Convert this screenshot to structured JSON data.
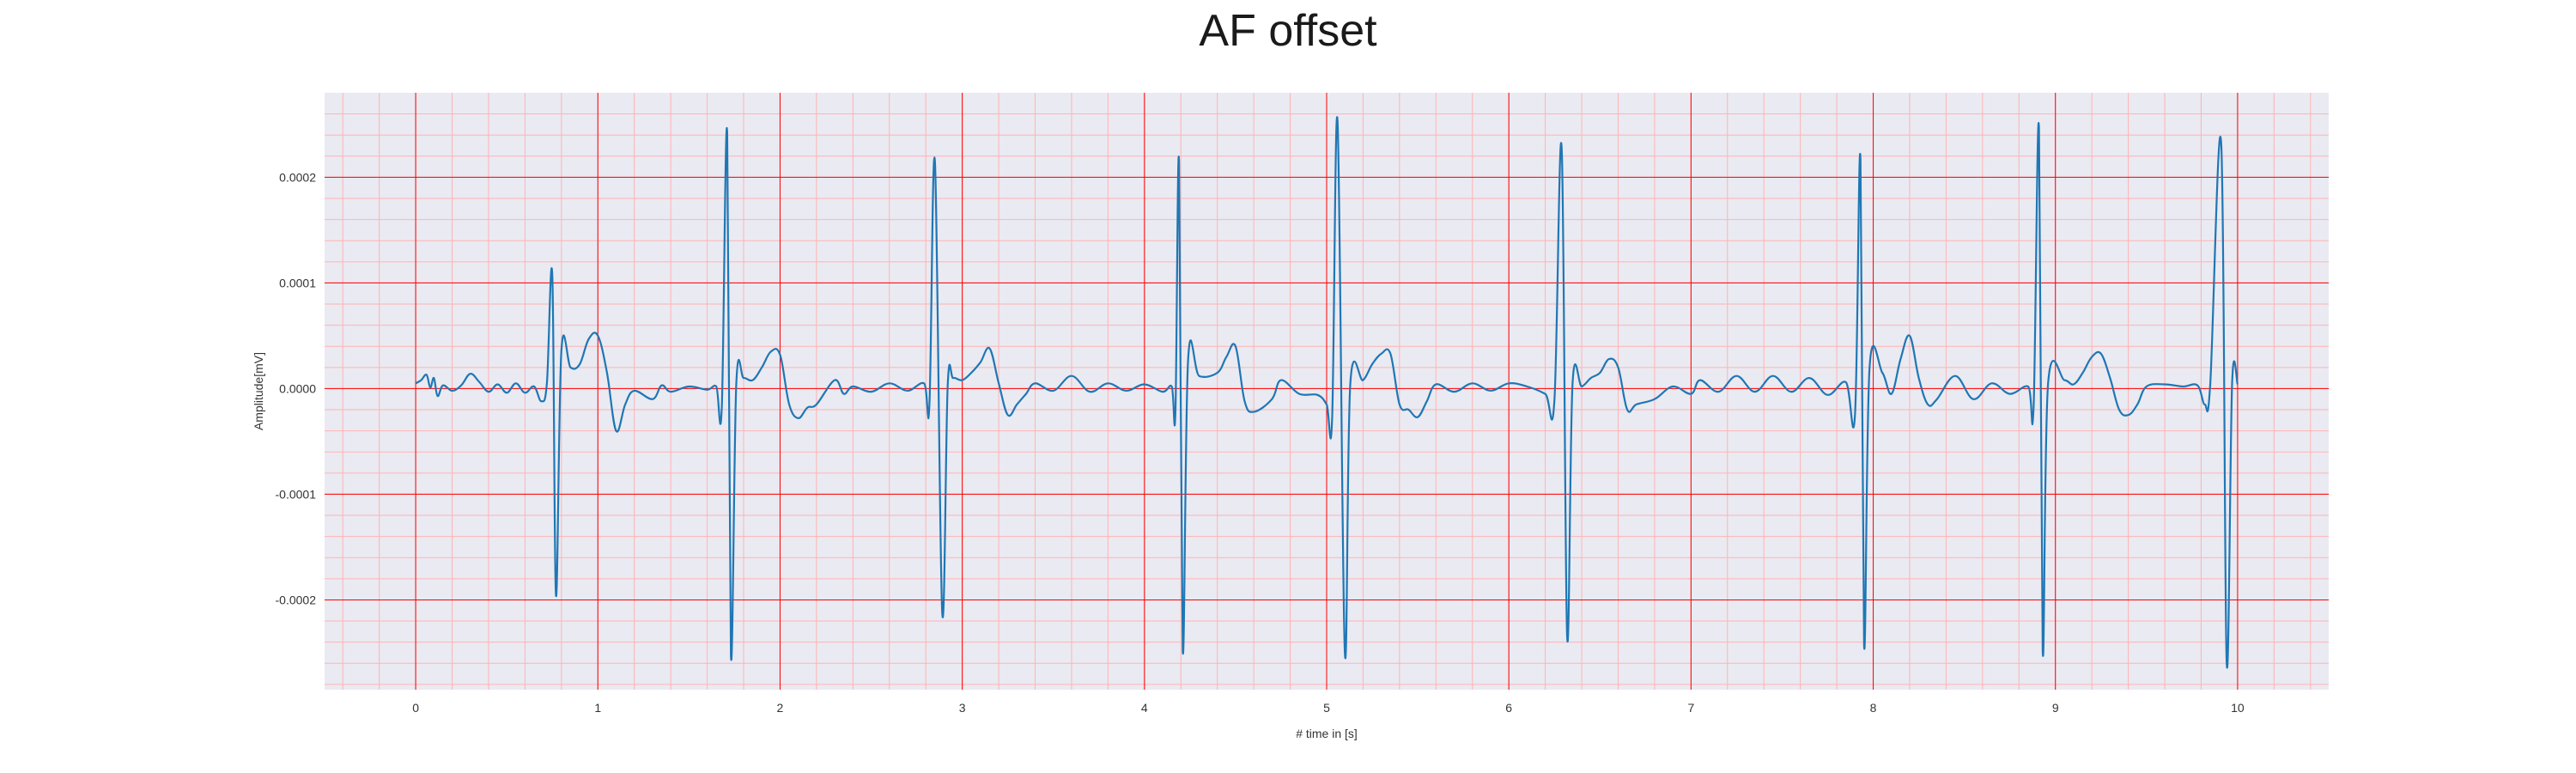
{
  "chart_data": {
    "type": "line",
    "title": "AF offset",
    "xlabel": "# time in [s]",
    "ylabel": "Amplitude[mV]",
    "xlim": [
      -0.5,
      10.5
    ],
    "ylim": [
      -0.000285,
      0.00028
    ],
    "x_ticks": [
      0,
      1,
      2,
      3,
      4,
      5,
      6,
      7,
      8,
      9,
      10
    ],
    "x_tick_labels": [
      "0",
      "1",
      "2",
      "3",
      "4",
      "5",
      "6",
      "7",
      "8",
      "9",
      "10"
    ],
    "y_ticks": [
      0.0002,
      0.0001,
      0.0,
      -0.0001,
      -0.0002
    ],
    "y_tick_labels": [
      "0.0002",
      "0.0001",
      "0.0000",
      "-0.0001",
      "-0.0002"
    ],
    "grid": {
      "major": true,
      "minor": true
    },
    "colors": {
      "line": "#1f77b4",
      "plot_background": "#eaeaf2",
      "major_grid": "#ff0000",
      "minor_grid": "#ffb3b3"
    },
    "series": [
      {
        "values": [
          [
            0.0,
            5e-06
          ],
          [
            0.03,
            8e-06
          ],
          [
            0.06,
            1.3e-05
          ],
          [
            0.08,
            1e-06
          ],
          [
            0.1,
            1e-05
          ],
          [
            0.12,
            -7e-06
          ],
          [
            0.15,
            3e-06
          ],
          [
            0.2,
            -2e-06
          ],
          [
            0.25,
            3e-06
          ],
          [
            0.3,
            1.4e-05
          ],
          [
            0.35,
            6e-06
          ],
          [
            0.4,
            -3e-06
          ],
          [
            0.45,
            4e-06
          ],
          [
            0.5,
            -4e-06
          ],
          [
            0.55,
            5e-06
          ],
          [
            0.6,
            -4e-06
          ],
          [
            0.65,
            2e-06
          ],
          [
            0.69,
            -1.2e-05
          ],
          [
            0.72,
            5e-06
          ],
          [
            0.75,
            0.000107
          ],
          [
            0.77,
            -0.000196
          ],
          [
            0.8,
            3.6e-05
          ],
          [
            0.85,
            2e-05
          ],
          [
            0.9,
            2.3e-05
          ],
          [
            0.95,
            4.7e-05
          ],
          [
            1.0,
            5e-05
          ],
          [
            1.05,
            1.5e-05
          ],
          [
            1.1,
            -4e-05
          ],
          [
            1.15,
            -1.5e-05
          ],
          [
            1.2,
            -2e-06
          ],
          [
            1.3,
            -1e-05
          ],
          [
            1.35,
            3e-06
          ],
          [
            1.4,
            -3e-06
          ],
          [
            1.5,
            2e-06
          ],
          [
            1.6,
            -1e-06
          ],
          [
            1.65,
            2e-06
          ],
          [
            1.68,
            -1.8e-05
          ],
          [
            1.71,
            0.000242
          ],
          [
            1.73,
            -0.000252
          ],
          [
            1.76,
            5e-06
          ],
          [
            1.8,
            1e-05
          ],
          [
            1.85,
            8e-06
          ],
          [
            1.9,
            2e-05
          ],
          [
            1.95,
            3.5e-05
          ],
          [
            2.0,
            3.2e-05
          ],
          [
            2.05,
            -1.5e-05
          ],
          [
            2.1,
            -2.8e-05
          ],
          [
            2.15,
            -1.8e-05
          ],
          [
            2.2,
            -1.5e-05
          ],
          [
            2.3,
            8e-06
          ],
          [
            2.35,
            -5e-06
          ],
          [
            2.4,
            2e-06
          ],
          [
            2.5,
            -3e-06
          ],
          [
            2.6,
            5e-06
          ],
          [
            2.7,
            -2e-06
          ],
          [
            2.79,
            5e-06
          ],
          [
            2.82,
            -1.5e-05
          ],
          [
            2.85,
            0.000215
          ],
          [
            2.89,
            -0.000212
          ],
          [
            2.92,
            3e-06
          ],
          [
            2.95,
            1e-05
          ],
          [
            3.0,
            8e-06
          ],
          [
            3.05,
            1.5e-05
          ],
          [
            3.1,
            2.5e-05
          ],
          [
            3.15,
            3.8e-05
          ],
          [
            3.2,
            5e-06
          ],
          [
            3.25,
            -2.5e-05
          ],
          [
            3.3,
            -1.5e-05
          ],
          [
            3.35,
            -5e-06
          ],
          [
            3.4,
            5e-06
          ],
          [
            3.5,
            -2e-06
          ],
          [
            3.6,
            1.2e-05
          ],
          [
            3.7,
            -3e-06
          ],
          [
            3.8,
            5e-06
          ],
          [
            3.9,
            -2e-06
          ],
          [
            4.0,
            4e-06
          ],
          [
            4.1,
            -3e-06
          ],
          [
            4.15,
            2e-06
          ],
          [
            4.17,
            -2.2e-05
          ],
          [
            4.19,
            0.000215
          ],
          [
            4.21,
            -0.000248
          ],
          [
            4.24,
            2.8e-05
          ],
          [
            4.3,
            1.2e-05
          ],
          [
            4.4,
            1.5e-05
          ],
          [
            4.45,
            3e-05
          ],
          [
            4.5,
            4e-05
          ],
          [
            4.55,
            -1.2e-05
          ],
          [
            4.6,
            -2.2e-05
          ],
          [
            4.7,
            -1e-05
          ],
          [
            4.75,
            8e-06
          ],
          [
            4.85,
            -5e-06
          ],
          [
            4.95,
            -6e-06
          ],
          [
            5.0,
            -1.5e-05
          ],
          [
            5.03,
            -2.8e-05
          ],
          [
            5.06,
            0.000253
          ],
          [
            5.1,
            -0.00025
          ],
          [
            5.13,
            5e-06
          ],
          [
            5.2,
            8e-06
          ],
          [
            5.25,
            2.3e-05
          ],
          [
            5.3,
            3.3e-05
          ],
          [
            5.35,
            3.3e-05
          ],
          [
            5.4,
            -1.5e-05
          ],
          [
            5.45,
            -2e-05
          ],
          [
            5.5,
            -2.7e-05
          ],
          [
            5.55,
            -1.2e-05
          ],
          [
            5.6,
            4e-06
          ],
          [
            5.7,
            -3e-06
          ],
          [
            5.8,
            5e-06
          ],
          [
            5.9,
            -2e-06
          ],
          [
            6.0,
            5e-06
          ],
          [
            6.1,
            2e-06
          ],
          [
            6.2,
            -5e-06
          ],
          [
            6.25,
            -1.2e-05
          ],
          [
            6.29,
            0.000228
          ],
          [
            6.32,
            -0.000235
          ],
          [
            6.35,
            5e-06
          ],
          [
            6.4,
            2e-06
          ],
          [
            6.45,
            1e-05
          ],
          [
            6.5,
            1.5e-05
          ],
          [
            6.55,
            2.8e-05
          ],
          [
            6.6,
            2e-05
          ],
          [
            6.65,
            -2e-05
          ],
          [
            6.7,
            -1.5e-05
          ],
          [
            6.8,
            -1e-05
          ],
          [
            6.9,
            2e-06
          ],
          [
            7.0,
            -5e-06
          ],
          [
            7.05,
            8e-06
          ],
          [
            7.15,
            -3e-06
          ],
          [
            7.25,
            1.2e-05
          ],
          [
            7.35,
            -3e-06
          ],
          [
            7.45,
            1.2e-05
          ],
          [
            7.55,
            -3e-06
          ],
          [
            7.65,
            1e-05
          ],
          [
            7.75,
            -6e-06
          ],
          [
            7.85,
            6e-06
          ],
          [
            7.9,
            -2.5e-05
          ],
          [
            7.93,
            0.000218
          ],
          [
            7.95,
            -0.000243
          ],
          [
            7.98,
            2e-05
          ],
          [
            8.05,
            1.5e-05
          ],
          [
            8.1,
            -5e-06
          ],
          [
            8.15,
            2.8e-05
          ],
          [
            8.2,
            5e-05
          ],
          [
            8.25,
            1e-05
          ],
          [
            8.3,
            -1.5e-05
          ],
          [
            8.35,
            -1e-05
          ],
          [
            8.45,
            1.2e-05
          ],
          [
            8.55,
            -1e-05
          ],
          [
            8.65,
            5e-06
          ],
          [
            8.75,
            -5e-06
          ],
          [
            8.85,
            2e-06
          ],
          [
            8.88,
            -1.8e-05
          ],
          [
            8.91,
            0.000247
          ],
          [
            8.93,
            -0.000248
          ],
          [
            8.96,
            5e-06
          ],
          [
            9.05,
            8e-06
          ],
          [
            9.1,
            4e-06
          ],
          [
            9.15,
            1.5e-05
          ],
          [
            9.2,
            3e-05
          ],
          [
            9.25,
            3.3e-05
          ],
          [
            9.3,
            1e-05
          ],
          [
            9.35,
            -2e-05
          ],
          [
            9.4,
            -2.5e-05
          ],
          [
            9.45,
            -1.5e-05
          ],
          [
            9.5,
            2e-06
          ],
          [
            9.6,
            4e-06
          ],
          [
            9.7,
            2e-06
          ],
          [
            9.78,
            3e-06
          ],
          [
            9.82,
            -1.5e-05
          ],
          [
            9.85,
            5e-06
          ],
          [
            9.91,
            0.000232
          ],
          [
            9.94,
            -0.00026
          ],
          [
            9.97,
            5e-06
          ],
          [
            10.0,
            4e-06
          ]
        ]
      }
    ]
  }
}
